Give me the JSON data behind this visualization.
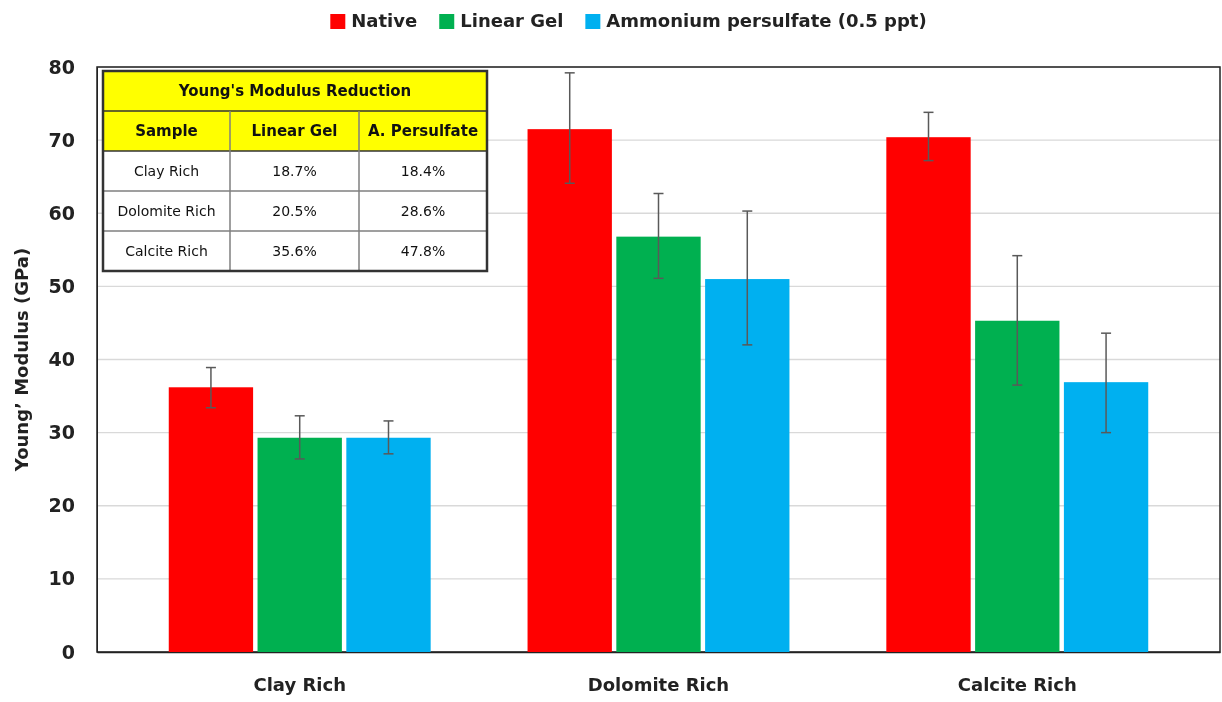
{
  "chart_data": [
    {
      "type": "bar",
      "ylabel": "Young’ Modulus (GPa)",
      "categories": [
        "Clay Rich",
        "Dolomite Rich",
        "Calcite Rich"
      ],
      "series": [
        {
          "name": "Native",
          "color": "#ff0000",
          "values": [
            36.2,
            71.5,
            70.4
          ],
          "errors": [
            [
              33.4,
              38.9
            ],
            [
              64.1,
              79.2
            ],
            [
              67.2,
              73.8
            ]
          ]
        },
        {
          "name": "Linear Gel",
          "color": "#00b050",
          "values": [
            29.3,
            56.8,
            45.3
          ],
          "errors": [
            [
              26.4,
              32.3
            ],
            [
              51.1,
              62.7
            ],
            [
              36.5,
              54.2
            ]
          ]
        },
        {
          "name": "Ammonium persulfate (0.5 ppt)",
          "color": "#00b0f0",
          "values": [
            29.3,
            51.0,
            36.9
          ],
          "errors": [
            [
              27.1,
              31.6
            ],
            [
              42.0,
              60.3
            ],
            [
              30.0,
              43.6
            ]
          ]
        }
      ],
      "ylim": [
        0,
        80
      ],
      "yticks": [
        0,
        10,
        20,
        30,
        40,
        50,
        60,
        70,
        80
      ],
      "grid": "y",
      "legend": "top"
    },
    {
      "type": "other",
      "title": "Young's Modulus Reduction",
      "xlabel": "Sample",
      "categories": [
        "Clay Rich",
        "Dolomite Rich",
        "Calcite Rich"
      ],
      "series": [
        {
          "name": "Linear Gel",
          "values": [
            18.7,
            20.5,
            35.6
          ],
          "value_labels": [
            "18.7%",
            "20.5%",
            "35.6%"
          ]
        },
        {
          "name": "A. Persulfate",
          "values": [
            18.4,
            28.6,
            47.8
          ],
          "value_labels": [
            "18.4%",
            "28.6%",
            "47.8%"
          ]
        }
      ]
    }
  ]
}
